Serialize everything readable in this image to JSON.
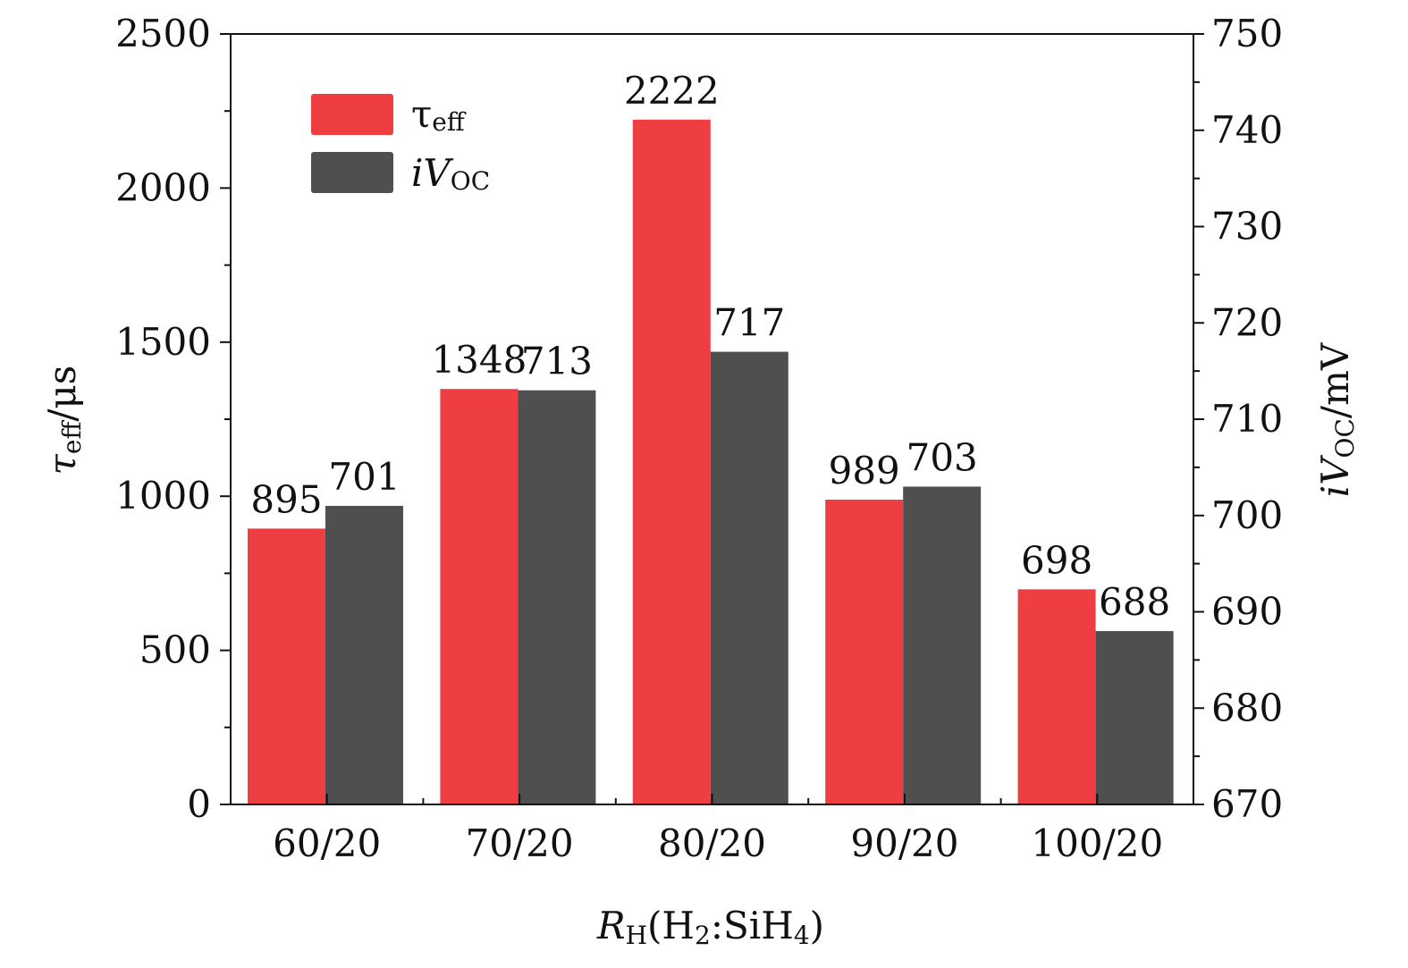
{
  "chart_data": {
    "type": "bar",
    "categories": [
      "60/20",
      "70/20",
      "80/20",
      "90/20",
      "100/20"
    ],
    "series": [
      {
        "name": "τeff",
        "axis": "left",
        "values": [
          895,
          1348,
          2222,
          989,
          698
        ],
        "color": "#ef3e42"
      },
      {
        "name": "iVOC",
        "axis": "right",
        "values": [
          701,
          713,
          717,
          703,
          688
        ],
        "color": "#4f4f4f"
      }
    ],
    "x_axis": {
      "label_main": "R",
      "label_sub": "H",
      "label_rest_1": "(H",
      "label_sub_2": "2",
      "label_rest_2": ":SiH",
      "label_sub_4": "4",
      "label_end": ")"
    },
    "left_axis": {
      "label_main": "τ",
      "label_sub": "eff",
      "label_unit": "/μs",
      "ylim": [
        0,
        2500
      ],
      "ticks": [
        0,
        500,
        1000,
        1500,
        2000,
        2500
      ]
    },
    "right_axis": {
      "label_main": "iV",
      "label_sub": "OC",
      "label_unit": "/mV",
      "ylim": [
        670,
        750
      ],
      "ticks": [
        670,
        680,
        690,
        700,
        710,
        720,
        730,
        740,
        750
      ]
    },
    "legend": {
      "position": "top-left",
      "items": [
        {
          "main": "τ",
          "sub": "eff"
        },
        {
          "main": "iV",
          "sub": "OC"
        }
      ]
    },
    "grid": false
  }
}
